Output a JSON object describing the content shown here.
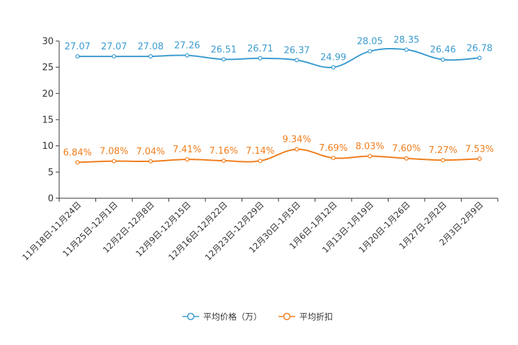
{
  "chart_data": {
    "type": "line",
    "title": "",
    "xlabel": "",
    "ylabel": "",
    "ylim": [
      0,
      30
    ],
    "yticks": [
      0,
      5,
      10,
      15,
      20,
      25,
      30
    ],
    "categories": [
      "11月18日-11月24日",
      "11月25日-12月1日",
      "12月2日-12月8日",
      "12月9日-12月15日",
      "12月16日-12月22日",
      "12月23日-12月29日",
      "12月30日-1月5日",
      "1月6日-1月12日",
      "1月13日-1月19日",
      "1月20日-1月26日",
      "1月27日-2月2日",
      "2月3日-2月9日"
    ],
    "series": [
      {
        "name": "平均价格（万）",
        "color": "#3a9bd0",
        "values": [
          27.07,
          27.07,
          27.08,
          27.26,
          26.51,
          26.71,
          26.37,
          24.99,
          28.05,
          28.35,
          26.46,
          26.78
        ],
        "labels": [
          "27.07",
          "27.07",
          "27.08",
          "27.26",
          "26.51",
          "26.71",
          "26.37",
          "24.99",
          "28.05",
          "28.35",
          "26.46",
          "26.78"
        ]
      },
      {
        "name": "平均折扣",
        "color": "#f07d1b",
        "values": [
          6.84,
          7.08,
          7.04,
          7.41,
          7.16,
          7.14,
          9.34,
          7.69,
          8.03,
          7.6,
          7.27,
          7.53
        ],
        "labels": [
          "6.84%",
          "7.08%",
          "7.04%",
          "7.41%",
          "7.16%",
          "7.14%",
          "9.34%",
          "7.69%",
          "8.03%",
          "7.60%",
          "7.27%",
          "7.53%"
        ]
      }
    ],
    "legend_position": "bottom-center"
  }
}
